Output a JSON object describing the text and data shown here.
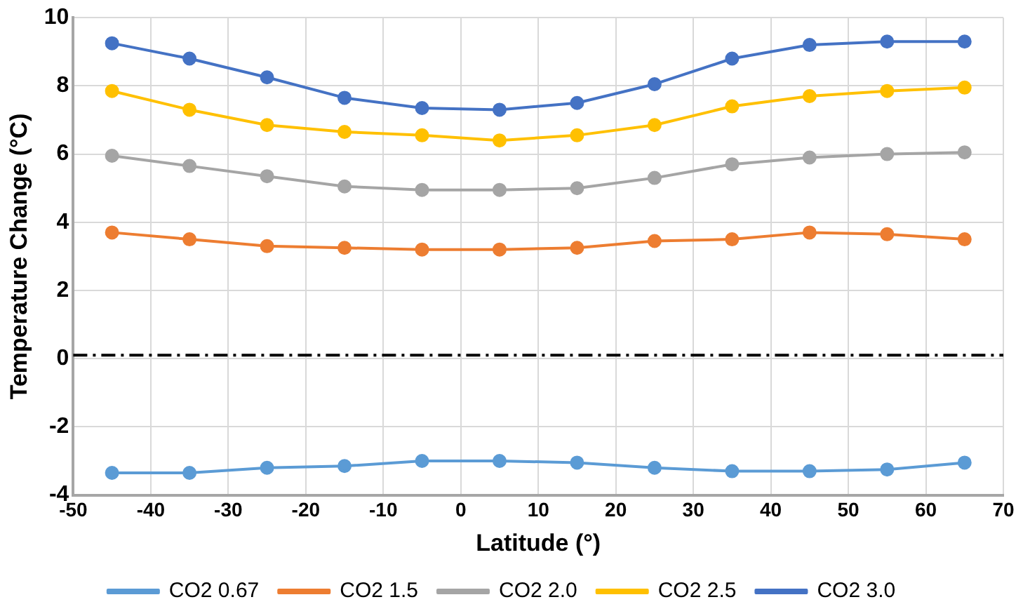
{
  "chart_data": {
    "type": "line",
    "xlabel": "Latitude (°)",
    "ylabel": "Temperature Change (°C)",
    "x": [
      -45,
      -35,
      -25,
      -15,
      -5,
      5,
      15,
      25,
      35,
      45,
      55,
      65
    ],
    "xlim": [
      -50,
      70
    ],
    "xticks": [
      -50,
      -40,
      -30,
      -20,
      -10,
      0,
      10,
      20,
      30,
      40,
      50,
      60,
      70
    ],
    "ylim": [
      -4,
      10
    ],
    "yticks": [
      -4,
      -2,
      0,
      2,
      4,
      6,
      8,
      10
    ],
    "grid": true,
    "legend": "bottom",
    "marker": "circle",
    "line_style": "solid",
    "ref_lines": [
      {
        "axis": "y",
        "value": 0.1,
        "color": "#000000",
        "line_style": "dashdot"
      }
    ],
    "series": [
      {
        "name": "CO2 0.67",
        "color": "#5b9bd5",
        "values": [
          -3.35,
          -3.35,
          -3.2,
          -3.15,
          -3.0,
          -3.0,
          -3.05,
          -3.2,
          -3.3,
          -3.3,
          -3.25,
          -3.05
        ]
      },
      {
        "name": "CO2 1.5",
        "color": "#ed7d31",
        "values": [
          3.7,
          3.5,
          3.3,
          3.25,
          3.2,
          3.2,
          3.25,
          3.45,
          3.5,
          3.7,
          3.65,
          3.5
        ]
      },
      {
        "name": "CO2 2.0",
        "color": "#a5a5a5",
        "values": [
          5.95,
          5.65,
          5.35,
          5.05,
          4.95,
          4.95,
          5.0,
          5.3,
          5.7,
          5.9,
          6.0,
          6.05
        ]
      },
      {
        "name": "CO2 2.5",
        "color": "#ffc000",
        "values": [
          7.85,
          7.3,
          6.85,
          6.65,
          6.55,
          6.4,
          6.55,
          6.85,
          7.4,
          7.7,
          7.85,
          7.95
        ]
      },
      {
        "name": "CO2 3.0",
        "color": "#4472c4",
        "values": [
          9.25,
          8.8,
          8.25,
          7.65,
          7.35,
          7.3,
          7.5,
          8.05,
          8.8,
          9.2,
          9.3,
          9.3
        ]
      }
    ]
  }
}
